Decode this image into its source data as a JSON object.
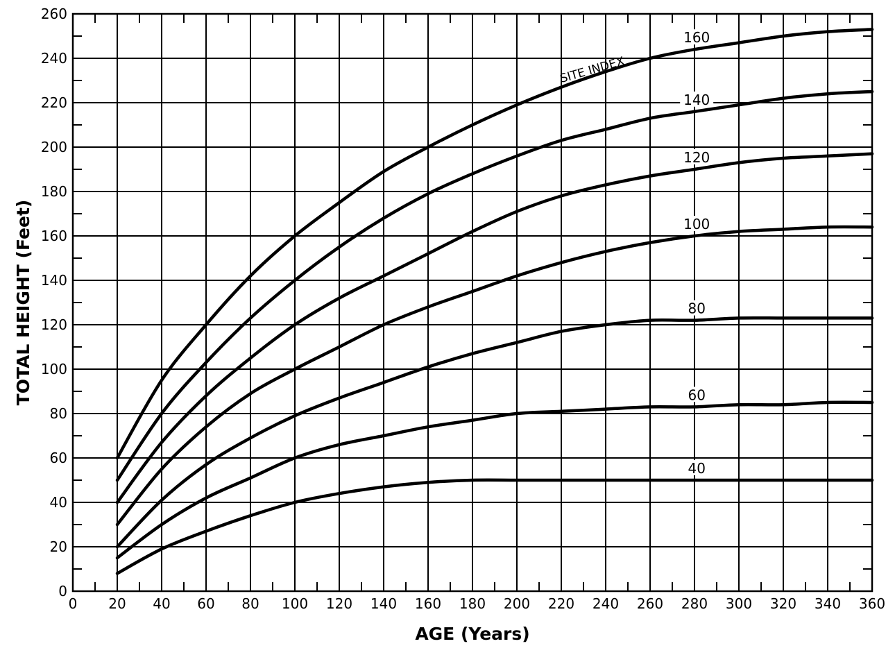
{
  "chart_data": {
    "type": "line",
    "xlabel": "AGE (Years)",
    "ylabel": "TOTAL HEIGHT (Feet)",
    "xlim": [
      0,
      360
    ],
    "ylim": [
      0,
      260
    ],
    "x_ticks": [
      "0",
      "20",
      "40",
      "60",
      "80",
      "100",
      "120",
      "140",
      "160",
      "180",
      "200",
      "220",
      "240",
      "260",
      "280",
      "300",
      "320",
      "340",
      "360"
    ],
    "y_ticks": [
      "0",
      "20",
      "40",
      "60",
      "80",
      "100",
      "120",
      "140",
      "160",
      "180",
      "200",
      "220",
      "240",
      "260"
    ],
    "grid": true,
    "annotation": "SITE INDEX",
    "series": [
      {
        "name": "160",
        "x": [
          20,
          40,
          60,
          80,
          100,
          120,
          140,
          160,
          180,
          200,
          220,
          240,
          260,
          280,
          300,
          320,
          340,
          360
        ],
        "y": [
          60,
          95,
          120,
          142,
          160,
          175,
          189,
          200,
          210,
          219,
          227,
          234,
          240,
          244,
          247,
          250,
          252,
          253
        ]
      },
      {
        "name": "140",
        "x": [
          20,
          40,
          60,
          80,
          100,
          120,
          140,
          160,
          180,
          200,
          220,
          240,
          260,
          280,
          300,
          320,
          340,
          360
        ],
        "y": [
          50,
          80,
          103,
          123,
          140,
          155,
          168,
          179,
          188,
          196,
          203,
          208,
          213,
          216,
          219,
          222,
          224,
          225
        ]
      },
      {
        "name": "120",
        "x": [
          20,
          40,
          60,
          80,
          100,
          120,
          140,
          160,
          180,
          200,
          220,
          240,
          260,
          280,
          300,
          320,
          340,
          360
        ],
        "y": [
          40,
          67,
          88,
          105,
          120,
          132,
          142,
          152,
          162,
          171,
          178,
          183,
          187,
          190,
          193,
          195,
          196,
          197
        ]
      },
      {
        "name": "100",
        "x": [
          20,
          40,
          60,
          80,
          100,
          120,
          140,
          160,
          180,
          200,
          220,
          240,
          260,
          280,
          300,
          320,
          340,
          360
        ],
        "y": [
          30,
          55,
          74,
          89,
          100,
          110,
          120,
          128,
          135,
          142,
          148,
          153,
          157,
          160,
          162,
          163,
          164,
          164
        ]
      },
      {
        "name": "80",
        "x": [
          20,
          40,
          60,
          80,
          100,
          120,
          140,
          160,
          180,
          200,
          220,
          240,
          260,
          280,
          300,
          320,
          340,
          360
        ],
        "y": [
          20,
          41,
          57,
          69,
          79,
          87,
          94,
          101,
          107,
          112,
          117,
          120,
          122,
          122,
          123,
          123,
          123,
          123
        ]
      },
      {
        "name": "60",
        "x": [
          20,
          40,
          60,
          80,
          100,
          120,
          140,
          160,
          180,
          200,
          220,
          240,
          260,
          280,
          300,
          320,
          340,
          360
        ],
        "y": [
          15,
          30,
          42,
          51,
          60,
          66,
          70,
          74,
          77,
          80,
          81,
          82,
          83,
          83,
          84,
          84,
          85,
          85
        ]
      },
      {
        "name": "40",
        "x": [
          20,
          40,
          60,
          80,
          100,
          120,
          140,
          160,
          180,
          200,
          220,
          240,
          260,
          280,
          300,
          320,
          340,
          360
        ],
        "y": [
          8,
          19,
          27,
          34,
          40,
          44,
          47,
          49,
          50,
          50,
          50,
          50,
          50,
          50,
          50,
          50,
          50,
          50
        ]
      }
    ]
  }
}
